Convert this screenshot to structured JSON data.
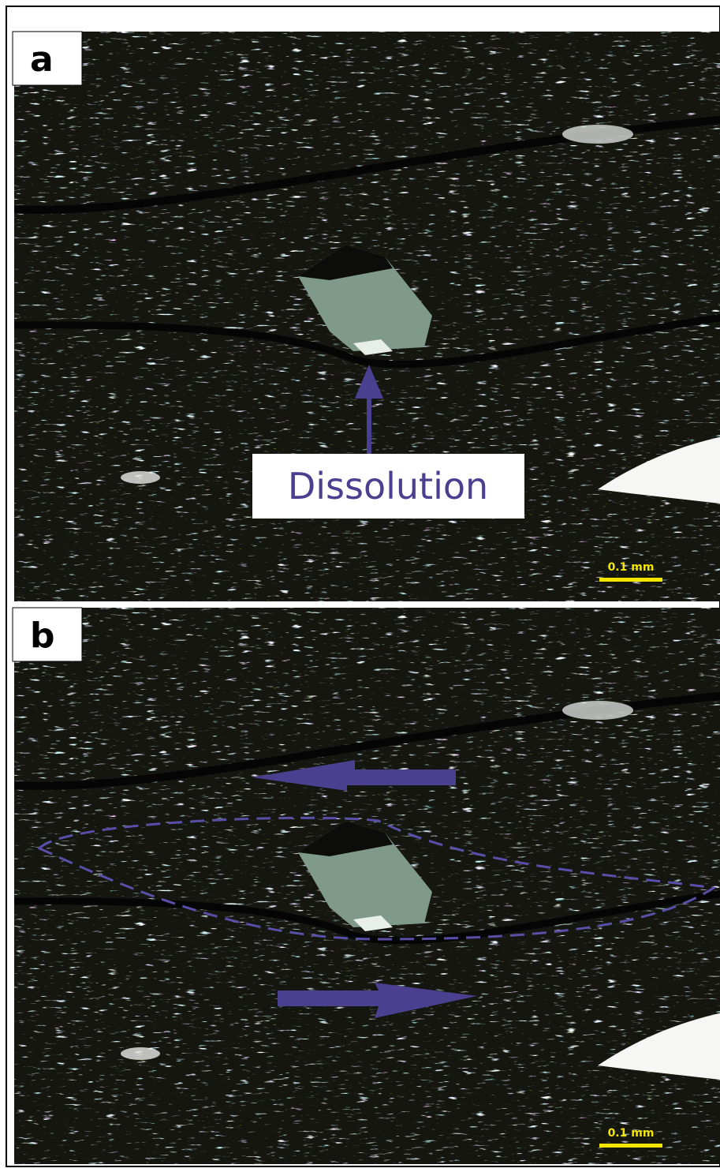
{
  "panels": [
    {
      "label": "a",
      "annotation": "Dissolution",
      "scale_bar": "0.1 mm"
    },
    {
      "label": "b",
      "scale_bar": "0.1 mm"
    }
  ]
}
